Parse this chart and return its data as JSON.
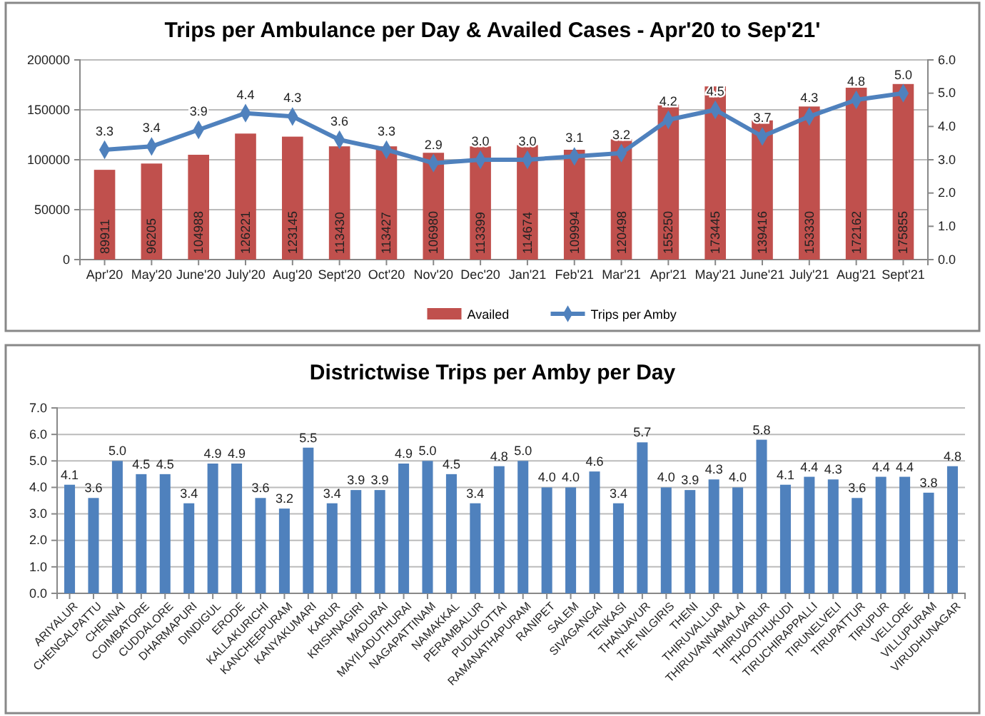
{
  "chart_data": [
    {
      "type": "bar",
      "title": "Trips per Ambulance per Day & Availed Cases - Apr'20 to Sep'21'",
      "categories": [
        "Apr'20",
        "May'20",
        "June'20",
        "July'20",
        "Aug'20",
        "Sept'20",
        "Oct'20",
        "Nov'20",
        "Dec'20",
        "Jan'21",
        "Feb'21",
        "Mar'21",
        "Apr'21",
        "May'21",
        "June'21",
        "July'21",
        "Aug'21",
        "Sept'21"
      ],
      "series": [
        {
          "name": "Availed",
          "color": "#c0504d",
          "values": [
            89911,
            96205,
            104988,
            126221,
            123145,
            113430,
            113427,
            106980,
            113399,
            114674,
            109994,
            120498,
            155250,
            173445,
            139416,
            153330,
            172162,
            175855
          ]
        },
        {
          "name": "Trips per Amby",
          "type": "line",
          "axis": "y2",
          "color": "#4f81bd",
          "values": [
            3.3,
            3.4,
            3.9,
            4.4,
            4.3,
            3.6,
            3.3,
            2.9,
            3.0,
            3.0,
            3.1,
            3.2,
            4.2,
            4.5,
            3.7,
            4.3,
            4.8,
            5.0
          ],
          "value_labels": [
            "3.3",
            "3.4",
            "3.9",
            "4.4",
            "4.3",
            "3.6",
            "3.3",
            "2.9",
            "3.0",
            "3.0",
            "3.1",
            "3.2",
            "4.2",
            "4.5",
            "3.7",
            "4.3",
            "4.8",
            "5.0"
          ]
        }
      ],
      "ylim": [
        0,
        200000
      ],
      "yticks": [
        0,
        50000,
        100000,
        150000,
        200000
      ],
      "y2lim": [
        0,
        6
      ],
      "y2ticks": [
        {
          "value": 0,
          "label": "0.0"
        },
        {
          "value": 1,
          "label": "1.0"
        },
        {
          "value": 2,
          "label": "2.0"
        },
        {
          "value": 3,
          "label": "3.0"
        },
        {
          "value": 4,
          "label": "4.0"
        },
        {
          "value": 5,
          "label": "5.0"
        },
        {
          "value": 6,
          "label": "6.0"
        }
      ],
      "data_labels": true,
      "grid": "y",
      "legend": "bottom",
      "marker": "diamond",
      "line_style": "solid"
    },
    {
      "type": "bar",
      "title": "Districtwise Trips per Amby per Day",
      "categories": [
        "ARIYALUR",
        "CHENGALPATTU",
        "CHENNAI",
        "COIMBATORE",
        "CUDDALORE",
        "DHARMAPURI",
        "DINDIGUL",
        "ERODE",
        "KALLAKURICHI",
        "KANCHEEPURAM",
        "KANYAKUMARI",
        "KARUR",
        "KRISHNAGIRI",
        "MADURAI",
        "MAYILADUTHURAI",
        "NAGAPATTINAM",
        "NAMAKKAL",
        "PERAMBALUR",
        "PUDUKOTTAI",
        "RAMANATHAPURAM",
        "RANIPET",
        "SALEM",
        "SIVAGANGAI",
        "TENKASI",
        "THANJAVUR",
        "THE NILGIRIS",
        "THENI",
        "THIRUVALLUR",
        "THIRUVANNAMALAI",
        "THIRUVARUR",
        "THOOTHUKUDI",
        "TIRUCHIRAPPALLI",
        "TIRUNELVELI",
        "TIRUPATTUR",
        "TIRUPUR",
        "VELLORE",
        "VILLUPURAM",
        "VIRUDHUNAGAR"
      ],
      "series": [
        {
          "color": "#4f81bd",
          "values": [
            4.1,
            3.6,
            5.0,
            4.5,
            4.5,
            3.4,
            4.9,
            4.9,
            3.6,
            3.2,
            5.5,
            3.4,
            3.9,
            3.9,
            4.9,
            5.0,
            4.5,
            3.4,
            4.8,
            5.0,
            4.0,
            4.0,
            4.6,
            3.4,
            5.7,
            4.0,
            3.9,
            4.3,
            4.0,
            5.8,
            4.1,
            4.4,
            4.3,
            3.6,
            4.4,
            4.4,
            3.8,
            4.8
          ],
          "value_labels": [
            "4.1",
            "3.6",
            "5.0",
            "4.5",
            "4.5",
            "3.4",
            "4.9",
            "4.9",
            "3.6",
            "3.2",
            "5.5",
            "3.4",
            "3.9",
            "3.9",
            "4.9",
            "5.0",
            "4.5",
            "3.4",
            "4.8",
            "5.0",
            "4.0",
            "4.0",
            "4.6",
            "3.4",
            "5.7",
            "4.0",
            "3.9",
            "4.3",
            "4.0",
            "5.8",
            "4.1",
            "4.4",
            "4.3",
            "3.6",
            "4.4",
            "4.4",
            "3.8",
            "4.8"
          ]
        }
      ],
      "ylim": [
        0,
        7
      ],
      "yticks": [
        {
          "value": 0,
          "label": "0.0"
        },
        {
          "value": 1,
          "label": "1.0"
        },
        {
          "value": 2,
          "label": "2.0"
        },
        {
          "value": 3,
          "label": "3.0"
        },
        {
          "value": 4,
          "label": "4.0"
        },
        {
          "value": 5,
          "label": "5.0"
        },
        {
          "value": 6,
          "label": "6.0"
        },
        {
          "value": 7,
          "label": "7.0"
        }
      ],
      "grid": "y"
    }
  ]
}
